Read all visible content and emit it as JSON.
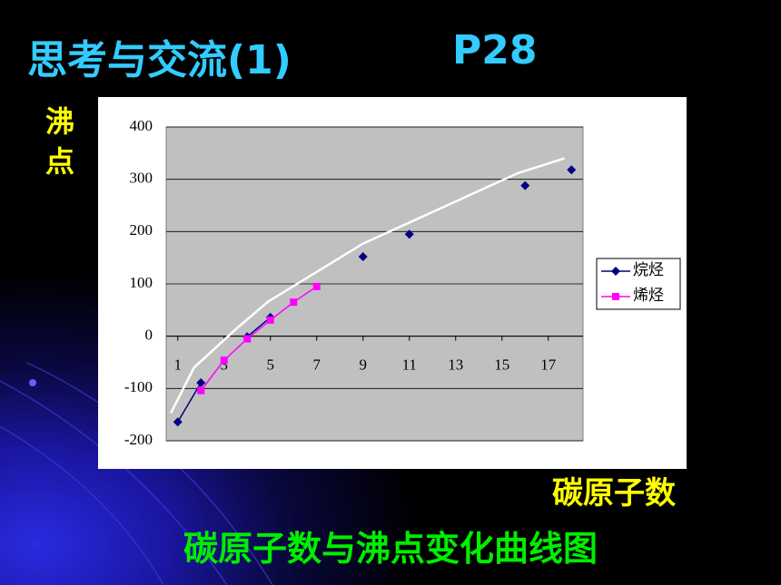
{
  "slide": {
    "title": "思考与交流(1)",
    "page_ref": "P28",
    "caption": "碳原子数与沸点变化曲线图"
  },
  "chart_data": {
    "type": "line",
    "y_label": "沸点",
    "x_label": "碳原子数",
    "xlim": [
      0.5,
      18.5
    ],
    "xticks": [
      1,
      3,
      5,
      7,
      9,
      11,
      13,
      15,
      17
    ],
    "ylim": [
      -200,
      400
    ],
    "yticks": [
      -200,
      -100,
      0,
      100,
      200,
      300,
      400
    ],
    "grid": true,
    "legend": "right",
    "series": [
      {
        "name": "烷烃",
        "color": "#000080",
        "marker": "diamond",
        "x": [
          1,
          2,
          3,
          4,
          5,
          6,
          7,
          8,
          9,
          10,
          11,
          12,
          13,
          14,
          15,
          16,
          17,
          18
        ],
        "values": [
          -164,
          -89,
          null,
          -1,
          36,
          null,
          null,
          null,
          152,
          null,
          195,
          null,
          null,
          null,
          null,
          288,
          null,
          318
        ]
      },
      {
        "name": "烯烃",
        "color": "#ff00ff",
        "marker": "square",
        "x": [
          2,
          3,
          4,
          5,
          6,
          7
        ],
        "values": [
          -104,
          -46,
          -5,
          31,
          65,
          95
        ]
      },
      {
        "color": "#ffffff",
        "x": [
          0.7,
          1.7,
          3.6,
          4.9,
          9,
          15.7,
          17.7
        ],
        "values": [
          -147,
          -60,
          17,
          66,
          177,
          312,
          340
        ]
      }
    ]
  }
}
